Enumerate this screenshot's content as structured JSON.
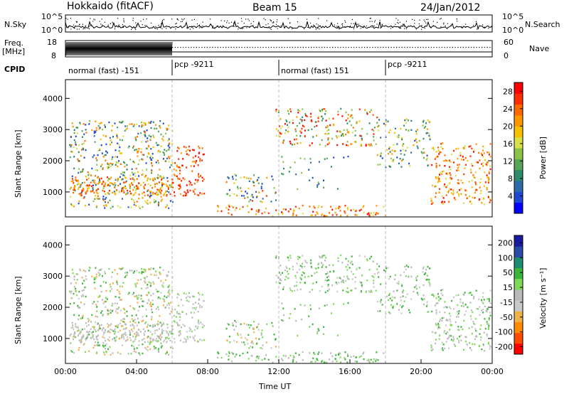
{
  "header": {
    "left": "Hokkaido (fitACF)",
    "center": "Beam 15",
    "right": "24/Jan/2012"
  },
  "side_labels": {
    "nsky": "N.Sky",
    "freq": "Freq.",
    "freq_unit": "[MHz]",
    "cpid": "CPID",
    "nsearch": "N.Search",
    "nave": "Nave"
  },
  "colors": {
    "power": [
      "#0000ff",
      "#1f49d2",
      "#2e6ba8",
      "#2f8a6a",
      "#57a657",
      "#8bc34a",
      "#d8e04a",
      "#f8c100",
      "#ff9800",
      "#ff6a00",
      "#ff2e00",
      "#ff0000"
    ],
    "velocity": [
      "#ff0000",
      "#ff4a00",
      "#ff8c00",
      "#f0b24a",
      "#c9c9c9",
      "#b9b9b9",
      "#7ed957",
      "#3cb43c",
      "#1e8c6e",
      "#2a4aa8",
      "#1a1aa0"
    ]
  },
  "chart_data": [
    {
      "type": "line",
      "name": "noise-sky",
      "ylabel": "N.Sky",
      "y_ticks": [
        "10^5",
        "10^0"
      ],
      "y2_ticks": [
        "10^5",
        "10^0"
      ],
      "y2label": "N.Search"
    },
    {
      "type": "line",
      "name": "frequency-nave",
      "ylabel": "Freq. [MHz]",
      "y_ticks": [
        18,
        8
      ],
      "y2_ticks": [
        60,
        0
      ],
      "y2label": "Nave"
    },
    {
      "type": "table",
      "name": "cpid",
      "segments": [
        {
          "label": "normal (fast) -151",
          "start_hour": 0,
          "end_hour": 6
        },
        {
          "label": "pcp -9211",
          "start_hour": 6,
          "end_hour": 12
        },
        {
          "label": "normal (fast) 151",
          "start_hour": 12,
          "end_hour": 18
        },
        {
          "label": "pcp -9211",
          "start_hour": 18,
          "end_hour": 24
        }
      ]
    },
    {
      "type": "heatmap",
      "name": "power",
      "ylabel": "Slant Range [km]",
      "y_ticks": [
        1000,
        2000,
        3000,
        4000
      ],
      "ylim": [
        200,
        4600
      ],
      "xlim": [
        0,
        24
      ],
      "colorbar_label": "Power [dB]",
      "colorbar_ticks": [
        4,
        8,
        12,
        16,
        20,
        24,
        28
      ],
      "colorbar_range": [
        0,
        30
      ]
    },
    {
      "type": "heatmap",
      "name": "velocity",
      "ylabel": "Slant Range [km]",
      "y_ticks": [
        1000,
        2000,
        3000,
        4000
      ],
      "ylim": [
        200,
        4600
      ],
      "xlim": [
        0,
        24
      ],
      "xlabel": "Time UT",
      "x_ticks": [
        "00:00",
        "04:00",
        "08:00",
        "12:00",
        "16:00",
        "20:00",
        "00:00"
      ],
      "colorbar_label": "Velocity [m s⁻¹]",
      "colorbar_ticks": [
        200,
        100,
        50,
        15,
        -15,
        -50,
        -100,
        -200
      ]
    }
  ]
}
